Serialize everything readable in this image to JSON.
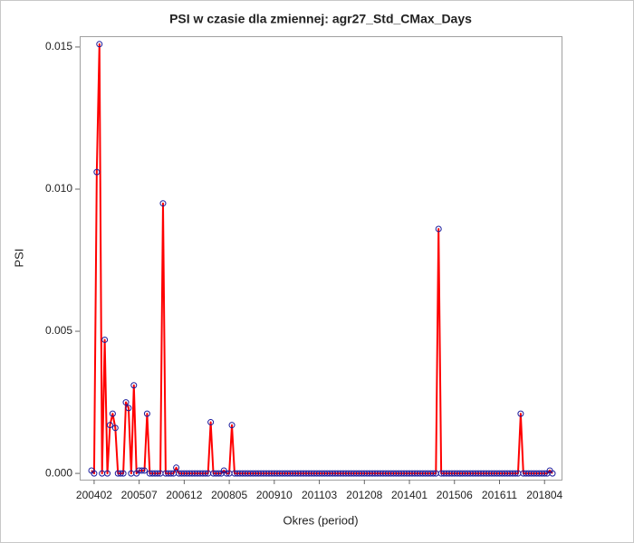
{
  "chart_data": {
    "type": "line",
    "title": "PSI w czasie dla zmiennej: agr27_Std_CMax_Days",
    "x_label": "Okres (period)",
    "y_label": "PSI",
    "categories": [
      null,
      "200402",
      null,
      null,
      null,
      null,
      null,
      null,
      null,
      null,
      null,
      null,
      null,
      null,
      null,
      null,
      null,
      null,
      "200507",
      null,
      null,
      null,
      null,
      null,
      null,
      null,
      null,
      null,
      null,
      null,
      null,
      null,
      null,
      null,
      null,
      "200612",
      null,
      null,
      null,
      null,
      null,
      null,
      null,
      null,
      null,
      null,
      null,
      null,
      null,
      null,
      null,
      null,
      "200805",
      null,
      null,
      null,
      null,
      null,
      null,
      null,
      null,
      null,
      null,
      null,
      null,
      null,
      null,
      null,
      null,
      "200910",
      null,
      null,
      null,
      null,
      null,
      null,
      null,
      null,
      null,
      null,
      null,
      null,
      null,
      null,
      null,
      null,
      "201103",
      null,
      null,
      null,
      null,
      null,
      null,
      null,
      null,
      null,
      null,
      null,
      null,
      null,
      null,
      null,
      null,
      "201208",
      null,
      null,
      null,
      null,
      null,
      null,
      null,
      null,
      null,
      null,
      null,
      null,
      null,
      null,
      null,
      null,
      "201401",
      null,
      null,
      null,
      null,
      null,
      null,
      null,
      null,
      null,
      null,
      null,
      null,
      null,
      null,
      null,
      null,
      "201506",
      null,
      null,
      null,
      null,
      null,
      null,
      null,
      null,
      null,
      null,
      null,
      null,
      null,
      null,
      null,
      null,
      "201611",
      null,
      null,
      null,
      null,
      null,
      null,
      null,
      null,
      null,
      null,
      null,
      null,
      null,
      null,
      null,
      null,
      "201804",
      null,
      null,
      null
    ],
    "values": [
      0.0001,
      0,
      0.0106,
      0.0151,
      0,
      0.0047,
      0,
      0.0017,
      0.0021,
      0.0016,
      0,
      0,
      0,
      0.0025,
      0.0023,
      0,
      0.0031,
      0,
      0.0001,
      0.0001,
      0.0001,
      0.0021,
      0,
      0,
      0,
      0,
      0,
      0.0095,
      0,
      0,
      0,
      0,
      0.0002,
      0,
      0,
      0,
      0,
      0,
      0,
      0,
      0,
      0,
      0,
      0,
      0,
      0.0018,
      0,
      0,
      0,
      0,
      0.0001,
      0,
      0,
      0.0017,
      0,
      0,
      0,
      0,
      0,
      0,
      0,
      0,
      0,
      0,
      0,
      0,
      0,
      0,
      0,
      0,
      0,
      0,
      0,
      0,
      0,
      0,
      0,
      0,
      0,
      0,
      0,
      0,
      0,
      0,
      0,
      0,
      0,
      0,
      0,
      0,
      0,
      0,
      0,
      0,
      0,
      0,
      0,
      0,
      0,
      0,
      0,
      0,
      0,
      0,
      0,
      0,
      0,
      0,
      0,
      0,
      0,
      0,
      0,
      0,
      0,
      0,
      0,
      0,
      0,
      0,
      0,
      0,
      0,
      0,
      0,
      0,
      0,
      0,
      0,
      0,
      0,
      0.0086,
      0,
      0,
      0,
      0,
      0,
      0,
      0,
      0,
      0,
      0,
      0,
      0,
      0,
      0,
      0,
      0,
      0,
      0,
      0,
      0,
      0,
      0,
      0,
      0,
      0,
      0,
      0,
      0,
      0,
      0,
      0.0021,
      0,
      0,
      0,
      0,
      0,
      0,
      0,
      0,
      0,
      0,
      0.0001,
      0
    ],
    "line_color": "#ff0000",
    "marker_color": "#1a1a9c",
    "ylim": [
      -0.00022,
      0.01538
    ],
    "yticks": [
      {
        "value": 0,
        "label": "0.000"
      },
      {
        "value": 0.005,
        "label": "0.005"
      },
      {
        "value": 0.01,
        "label": "0.010"
      },
      {
        "value": 0.015,
        "label": "0.015"
      }
    ]
  }
}
